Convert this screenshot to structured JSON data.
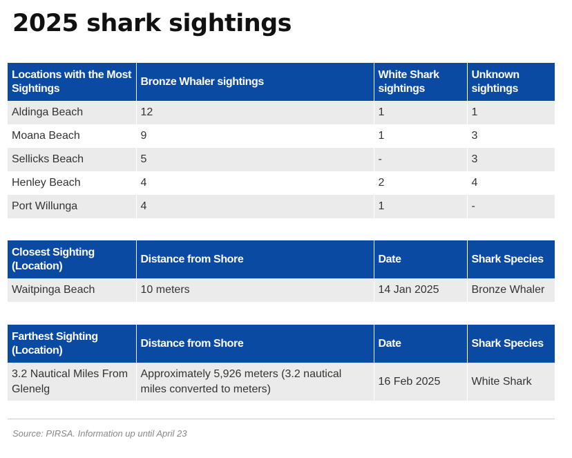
{
  "title": "2025 shark sightings",
  "most_sightings": {
    "headers": [
      "Locations with the Most Sightings",
      "Bronze Whaler sightings",
      "White Shark sightings",
      "Unknown sightings"
    ],
    "rows": [
      [
        "Aldinga Beach",
        "12",
        "1",
        "1"
      ],
      [
        "Moana Beach",
        "9",
        "1",
        "3"
      ],
      [
        "Sellicks Beach",
        "5",
        "-",
        "3"
      ],
      [
        "Henley Beach",
        "4",
        "2",
        "4"
      ],
      [
        "Port Willunga",
        "4",
        "1",
        "-"
      ]
    ]
  },
  "closest_sighting": {
    "headers": [
      "Closest Sighting (Location)",
      "Distance from Shore",
      "Date",
      "Shark Species"
    ],
    "rows": [
      [
        "Waitpinga Beach",
        "10 meters",
        "14 Jan 2025",
        "Bronze Whaler"
      ]
    ]
  },
  "farthest_sighting": {
    "headers": [
      "Farthest Sighting (Location)",
      "Distance from Shore",
      "Date",
      "Shark Species"
    ],
    "rows": [
      [
        "3.2 Nautical Miles From Glenelg",
        "Approximately 5,926 meters (3.2 nautical miles converted to meters)",
        "16 Feb 2025",
        "White Shark"
      ]
    ]
  },
  "source": "Source: PIRSA. Information up until April 23",
  "colors": {
    "header_background": "#0a4aa3",
    "header_text": "#ffffff",
    "stripe": "#ebebeb"
  }
}
